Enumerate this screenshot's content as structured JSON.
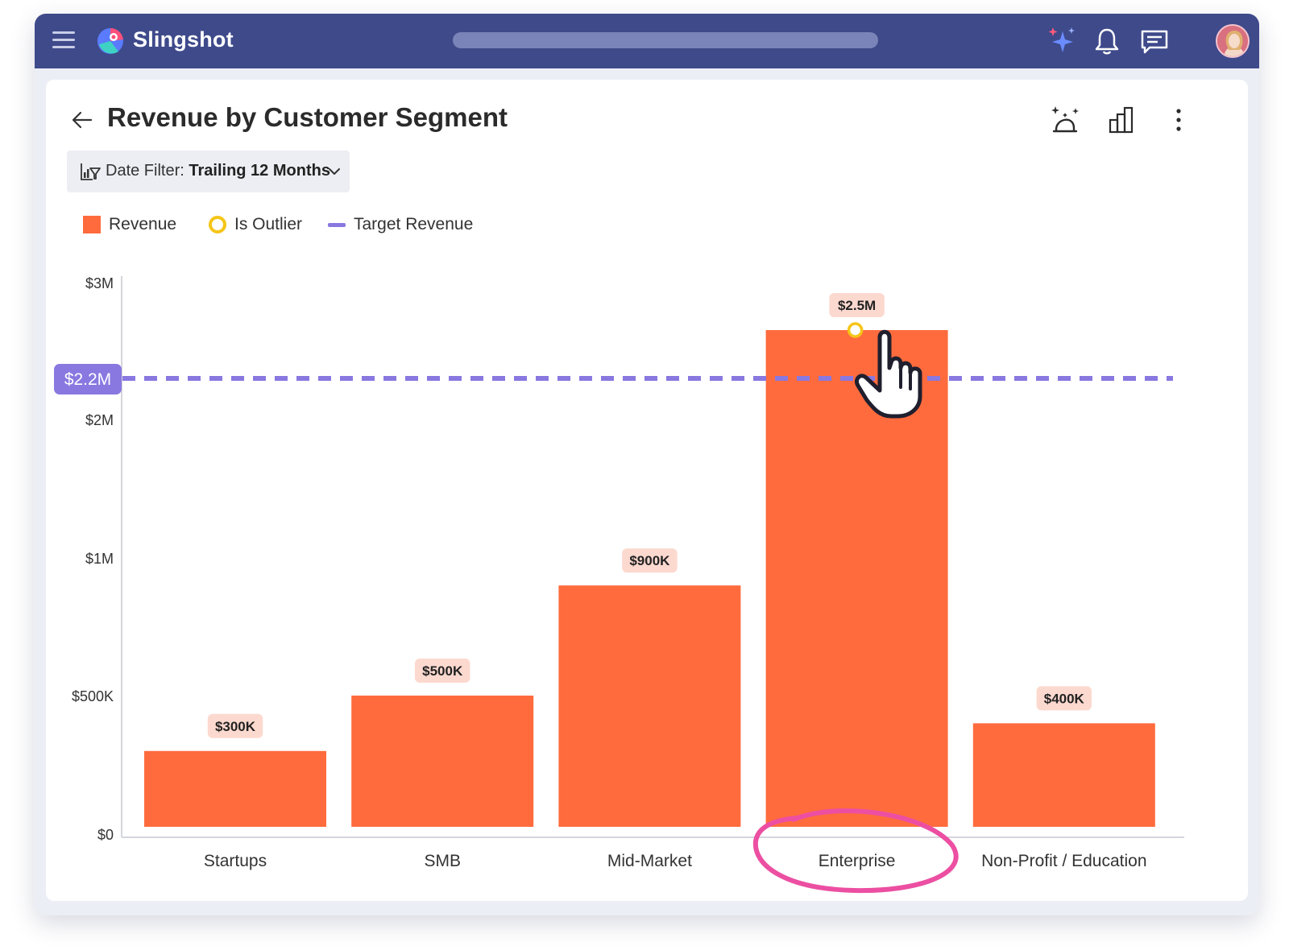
{
  "app": {
    "brand": "Slingshot",
    "icons": [
      "menu-icon",
      "ai-sparkle-icon",
      "bell-icon",
      "chat-icon",
      "avatar"
    ]
  },
  "page": {
    "title": "Revenue by Customer Segment",
    "date_filter": {
      "label": "Date Filter:",
      "value": "Trailing 12 Months"
    }
  },
  "legend": {
    "revenue": "Revenue",
    "outlier": "Is Outlier",
    "target": "Target Revenue"
  },
  "colors": {
    "topbar": "#3e4a8a",
    "bar": "#ff6b3d",
    "target": "#8878e0",
    "outlier": "#f5c518",
    "label_bg": "#fcd9cf",
    "highlight": "#ec4fa2"
  },
  "chart_data": {
    "type": "bar",
    "categories": [
      "Startups",
      "SMB",
      "Mid-Market",
      "Enterprise",
      "Non-Profit / Education"
    ],
    "series": [
      {
        "name": "Revenue",
        "values": [
          300000,
          500000,
          900000,
          2500000,
          400000
        ]
      }
    ],
    "data_labels": [
      "$300K",
      "$500K",
      "$900K",
      "$2.5M",
      "$400K"
    ],
    "outlier_index": 3,
    "highlighted_category": "Enterprise",
    "target": {
      "name": "Target Revenue",
      "value": 2200000,
      "label": "$2.2M"
    },
    "y_ticks": [
      {
        "label": "$0",
        "value": 0
      },
      {
        "label": "$500K",
        "value": 500000
      },
      {
        "label": "$1M",
        "value": 1000000
      },
      {
        "label": "$2M",
        "value": 2000000
      },
      {
        "label": "$3M",
        "value": 3000000
      }
    ],
    "ylim": [
      0,
      3000000
    ],
    "grid": false,
    "legend_position": "top-left"
  }
}
